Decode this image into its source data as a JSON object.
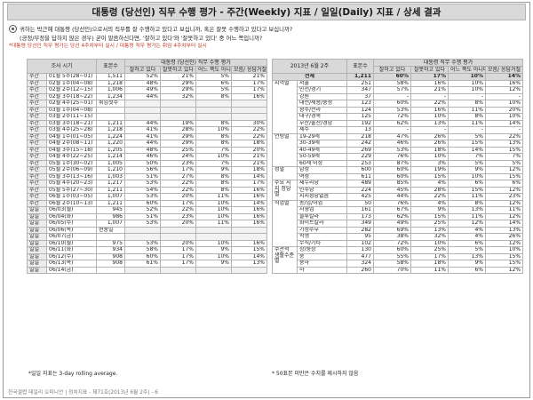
{
  "title": "대통령 (당선인) 직무 수행 평가 - 주간(Weekly) 지표 / 일일(Daily) 지표 / 상세 결과",
  "question": {
    "line1": "귀하는 박근혜 대통령 (당선인)으로서의 직무를 잘 수행하고 있다고 보십니까, 혹은 잘못 수행하고 있다고 보십니까?",
    "line2": "(긍정/부정을 답하지 않은 경우) 굳이 말씀하신다면, '잘하고 있다'와 '잘못하고 있다' 중 어느 쪽입니까?",
    "line3": "*대통령 당선인 직무 평가는 당선 4주차부터 실시 / 대통령 직무 평가는 취임 4주차부터 실시"
  },
  "left_table": {
    "header_left": "조사 시기",
    "header_n": "표본수",
    "header_group": "대통령 (당선인) 직무 수행 평가",
    "header_cols": [
      "잘하고 있다",
      "잘못하고 있다",
      "어느 쪽도 아니다",
      "모름/ 응답거절"
    ],
    "rows": [
      {
        "type": "주간",
        "period": "01월 5주(28~01)",
        "n": "1,511",
        "v": [
          "52%",
          "21%",
          "5%",
          "21%"
        ]
      },
      {
        "type": "주간",
        "period": "02월 1주(04~08)",
        "n": "1,218",
        "v": [
          "48%",
          "29%",
          "6%",
          "17%"
        ]
      },
      {
        "type": "주간",
        "period": "02월 2주(12~15)",
        "n": "1,006",
        "v": [
          "49%",
          "29%",
          "5%",
          "17%"
        ]
      },
      {
        "type": "주간",
        "period": "02월 3주(18~22)",
        "n": "1,234",
        "v": [
          "44%",
          "32%",
          "8%",
          "16%"
        ]
      },
      {
        "type": "주간",
        "period": "02월 4주(25~01)",
        "n": "취임첫주",
        "v": [
          "",
          "",
          "",
          ""
        ]
      },
      {
        "type": "주간",
        "period": "03월 1주(04~08)",
        "n": "",
        "v": [
          "",
          "",
          "",
          ""
        ]
      },
      {
        "type": "주간",
        "period": "03월 2주(11~15)",
        "n": "",
        "v": [
          "",
          "",
          "",
          ""
        ]
      },
      {
        "type": "주간",
        "period": "03월 3주(18~21)",
        "n": "1,211",
        "v": [
          "44%",
          "19%",
          "8%",
          "30%"
        ]
      },
      {
        "type": "주간",
        "period": "03월 4주(25~28)",
        "n": "1,218",
        "v": [
          "41%",
          "28%",
          "10%",
          "22%"
        ]
      },
      {
        "type": "주간",
        "period": "04월 1주(01~05)",
        "n": "1,224",
        "v": [
          "41%",
          "29%",
          "8%",
          "22%"
        ]
      },
      {
        "type": "주간",
        "period": "04월 2주(08~11)",
        "n": "1,220",
        "v": [
          "44%",
          "29%",
          "8%",
          "18%"
        ]
      },
      {
        "type": "주간",
        "period": "04월 3주(15~18)",
        "n": "1,205",
        "v": [
          "48%",
          "25%",
          "7%",
          "20%"
        ]
      },
      {
        "type": "주간",
        "period": "04월 4주(22~25)",
        "n": "1,214",
        "v": [
          "46%",
          "24%",
          "10%",
          "21%"
        ]
      },
      {
        "type": "주간",
        "period": "05월 1주(30~02)",
        "n": "1,005",
        "v": [
          "50%",
          "23%",
          "7%",
          "21%"
        ]
      },
      {
        "type": "주간",
        "period": "05월 2주(06~09)",
        "n": "1,210",
        "v": [
          "56%",
          "17%",
          "9%",
          "18%"
        ]
      },
      {
        "type": "주간",
        "period": "05월 3주(13~16)",
        "n": "1,003",
        "v": [
          "51%",
          "27%",
          "8%",
          "14%"
        ]
      },
      {
        "type": "주간",
        "period": "05월 4주(20~23)",
        "n": "1,217",
        "v": [
          "53%",
          "22%",
          "8%",
          "17%"
        ]
      },
      {
        "type": "주간",
        "period": "05월 5주(27~30)",
        "n": "1,211",
        "v": [
          "54%",
          "22%",
          "8%",
          "16%"
        ]
      },
      {
        "type": "주간",
        "period": "06월 1주(03~05)",
        "n": "1,007",
        "v": [
          "53%",
          "20%",
          "11%",
          "16%"
        ]
      },
      {
        "type": "주간",
        "period": "06월 2주(10~13)",
        "n": "1,211",
        "v": [
          "60%",
          "17%",
          "10%",
          "14%"
        ]
      },
      {
        "type": "일일",
        "period": "06/03(월)",
        "n": "945",
        "v": [
          "52%",
          "22%",
          "10%",
          "16%"
        ]
      },
      {
        "type": "일일",
        "period": "06/04(화)",
        "n": "986",
        "v": [
          "51%",
          "23%",
          "10%",
          "16%"
        ]
      },
      {
        "type": "일일",
        "period": "06/05(수)",
        "n": "1,007",
        "v": [
          "53%",
          "20%",
          "11%",
          "16%"
        ]
      },
      {
        "type": "일일",
        "period": "06/06(목)",
        "n": "현충일",
        "v": [
          "",
          "",
          "",
          ""
        ]
      },
      {
        "type": "일일",
        "period": "06/07(금)",
        "n": "",
        "v": [
          "",
          "",
          "",
          ""
        ]
      },
      {
        "type": "일일",
        "period": "06/10(월)",
        "n": "975",
        "v": [
          "53%",
          "20%",
          "10%",
          "16%"
        ]
      },
      {
        "type": "일일",
        "period": "06/11(화)",
        "n": "934",
        "v": [
          "58%",
          "17%",
          "9%",
          "15%"
        ]
      },
      {
        "type": "일일",
        "period": "06/12(수)",
        "n": "908",
        "v": [
          "60%",
          "17%",
          "10%",
          "14%"
        ]
      },
      {
        "type": "일일",
        "period": "06/13(목)",
        "n": "908",
        "v": [
          "61%",
          "17%",
          "9%",
          "13%"
        ]
      },
      {
        "type": "일일",
        "period": "06/14(금)",
        "n": "",
        "v": [
          "",
          "",
          "",
          ""
        ]
      }
    ],
    "note": "*일일 지표는 3-day rolling average."
  },
  "right_table": {
    "header_period": "2013년 6월 2주",
    "header_n": "표본수",
    "header_group": "대통령 직무 수행 평가",
    "header_cols": [
      "잘하고 있다",
      "잘못하고 있다",
      "어느 쪽도 아니다",
      "모름/ 응답거절"
    ],
    "total": {
      "label": "전체",
      "n": "1,211",
      "v": [
        "60%",
        "17%",
        "10%",
        "14%"
      ]
    },
    "groups": [
      {
        "cat": "지역별",
        "rows": [
          {
            "label": "서울",
            "n": "251",
            "v": [
              "58%",
              "16%",
              "10%",
              "16%"
            ]
          },
          {
            "label": "인천/경기",
            "n": "347",
            "v": [
              "57%",
              "21%",
              "10%",
              "12%"
            ]
          },
          {
            "label": "강원",
            "n": "37",
            "v": [
              "-",
              "-",
              "-",
              "-"
            ]
          },
          {
            "label": "대전/세종/충청",
            "n": "123",
            "v": [
              "60%",
              "22%",
              "8%",
              "10%"
            ]
          },
          {
            "label": "광주/전라",
            "n": "124",
            "v": [
              "53%",
              "16%",
              "11%",
              "20%"
            ]
          },
          {
            "label": "대구/경북",
            "n": "125",
            "v": [
              "72%",
              "10%",
              "8%",
              "10%"
            ]
          },
          {
            "label": "부산/울산/경남",
            "n": "192",
            "v": [
              "62%",
              "13%",
              "11%",
              "14%"
            ]
          },
          {
            "label": "제주",
            "n": "13",
            "v": [
              "-",
              "-",
              "-",
              "-"
            ]
          }
        ]
      },
      {
        "cat": "연령별",
        "rows": [
          {
            "label": "19-29세",
            "n": "218",
            "v": [
              "47%",
              "26%",
              "5%",
              "22%"
            ]
          },
          {
            "label": "30-39세",
            "n": "242",
            "v": [
              "46%",
              "26%",
              "15%",
              "13%"
            ]
          },
          {
            "label": "40-49세",
            "n": "269",
            "v": [
              "53%",
              "18%",
              "14%",
              "15%"
            ]
          },
          {
            "label": "50-59세",
            "n": "229",
            "v": [
              "76%",
              "10%",
              "7%",
              "7%"
            ]
          },
          {
            "label": "60세 이상",
            "n": "253",
            "v": [
              "87%",
              "3%",
              "5%",
              "5%"
            ]
          }
        ]
      },
      {
        "cat": "성별",
        "rows": [
          {
            "label": "남성",
            "n": "600",
            "v": [
              "60%",
              "19%",
              "9%",
              "12%"
            ]
          },
          {
            "label": "여성",
            "n": "611",
            "v": [
              "60%",
              "15%",
              "10%",
              "15%"
            ]
          }
        ]
      },
      {
        "cat": "주요 지지 정당별",
        "rows": [
          {
            "label": "새누리당",
            "n": "489",
            "v": [
              "85%",
              "4%",
              "6%",
              "6%"
            ]
          },
          {
            "label": "민주당",
            "n": "224",
            "v": [
              "45%",
              "28%",
              "15%",
              "12%"
            ]
          },
          {
            "label": "지지정당없음",
            "n": "425",
            "v": [
              "44%",
              "22%",
              "11%",
              "23%"
            ]
          }
        ]
      },
      {
        "cat": "직업별",
        "rows": [
          {
            "label": "농/임/어업",
            "n": "50",
            "v": [
              "76%",
              "4%",
              "8%",
              "12%"
            ]
          },
          {
            "label": "자영업",
            "n": "161",
            "v": [
              "67%",
              "9%",
              "13%",
              "11%"
            ]
          },
          {
            "label": "블루칼라",
            "n": "173",
            "v": [
              "62%",
              "15%",
              "11%",
              "12%"
            ]
          },
          {
            "label": "화이트칼라",
            "n": "349",
            "v": [
              "49%",
              "25%",
              "12%",
              "14%"
            ]
          },
          {
            "label": "가정주부",
            "n": "282",
            "v": [
              "69%",
              "13%",
              "4%",
              "13%"
            ]
          },
          {
            "label": "학생",
            "n": "95",
            "v": [
              "38%",
              "32%",
              "4%",
              "26%"
            ]
          },
          {
            "label": "무직/기타",
            "n": "102",
            "v": [
              "72%",
              "10%",
              "6%",
              "12%"
            ]
          }
        ]
      },
      {
        "cat": "주관적 생활수준별",
        "rows": [
          {
            "label": "상/중상",
            "n": "130",
            "v": [
              "60%",
              "25%",
              "5%",
              "10%"
            ]
          },
          {
            "label": "중",
            "n": "477",
            "v": [
              "55%",
              "17%",
              "13%",
              "15%"
            ]
          },
          {
            "label": "중하",
            "n": "324",
            "v": [
              "58%",
              "18%",
              "9%",
              "15%"
            ]
          },
          {
            "label": "하",
            "n": "260",
            "v": [
              "70%",
              "11%",
              "6%",
              "12%"
            ]
          }
        ]
      }
    ],
    "note": "* 50표본 미만은 수치를 제시하지 않음"
  },
  "footer": "한국갤럽 데일리 오피니언 | 정치지표 - 제71호(2013년 6월 2주) - 6"
}
